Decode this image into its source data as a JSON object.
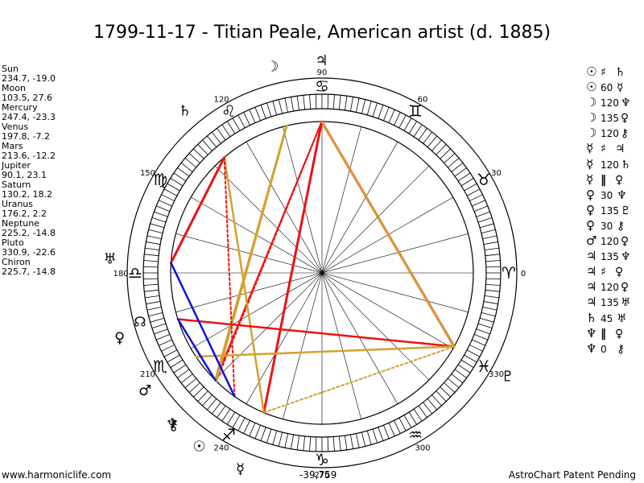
{
  "title": "1799-11-17 - Titian Peale, American artist (d. 1885)",
  "planets": [
    {
      "name": "Sun",
      "coords": "234.7, -19.0",
      "lon": 234.7,
      "glyph": "☉"
    },
    {
      "name": "Moon",
      "coords": "103.5, 27.6",
      "lon": 103.5,
      "glyph": "☽"
    },
    {
      "name": "Mercury",
      "coords": "247.4, -23.3",
      "lon": 247.4,
      "glyph": "☿"
    },
    {
      "name": "Venus",
      "coords": "197.8, -7.2",
      "lon": 197.8,
      "glyph": "♀"
    },
    {
      "name": "Mars",
      "coords": "213.6, -12.2",
      "lon": 213.6,
      "glyph": "♂"
    },
    {
      "name": "Jupiter",
      "coords": "90.1, 23.1",
      "lon": 90.1,
      "glyph": "♃"
    },
    {
      "name": "Saturn",
      "coords": "130.2, 18.2",
      "lon": 130.2,
      "glyph": "♄"
    },
    {
      "name": "Uranus",
      "coords": "176.2, 2.2",
      "lon": 176.2,
      "glyph": "♅"
    },
    {
      "name": "Neptune",
      "coords": "225.2, -14.8",
      "lon": 225.2,
      "glyph": "♆"
    },
    {
      "name": "Pluto",
      "coords": "330.9, -22.6",
      "lon": 330.9,
      "glyph": "♇"
    },
    {
      "name": "Chiron",
      "coords": "225.7, -14.8",
      "lon": 225.7,
      "glyph": "⚷"
    }
  ],
  "aspects": [
    {
      "p1": "☉",
      "sym": "♯",
      "p2": "♄"
    },
    {
      "p1": "☉",
      "sym": "60",
      "p2": "☿"
    },
    {
      "p1": "☽",
      "sym": "120",
      "p2": "♆"
    },
    {
      "p1": "☽",
      "sym": "135",
      "p2": "♀"
    },
    {
      "p1": "☽",
      "sym": "120",
      "p2": "⚷"
    },
    {
      "p1": "☿",
      "sym": "♯",
      "p2": "♃"
    },
    {
      "p1": "☿",
      "sym": "120",
      "p2": "♄"
    },
    {
      "p1": "☿",
      "sym": "‖",
      "p2": "♀"
    },
    {
      "p1": "♀",
      "sym": "30",
      "p2": "♆"
    },
    {
      "p1": "♀",
      "sym": "135",
      "p2": "♇"
    },
    {
      "p1": "♀",
      "sym": "30",
      "p2": "⚷"
    },
    {
      "p1": "♂",
      "sym": "120",
      "p2": "♀"
    },
    {
      "p1": "♃",
      "sym": "135",
      "p2": "♆"
    },
    {
      "p1": "♃",
      "sym": "♯",
      "p2": "♀"
    },
    {
      "p1": "♃",
      "sym": "120",
      "p2": "♀"
    },
    {
      "p1": "♃",
      "sym": "135",
      "p2": "♅"
    },
    {
      "p1": "♄",
      "sym": "45",
      "p2": "♅"
    },
    {
      "p1": "♆",
      "sym": "‖",
      "p2": "♀"
    },
    {
      "p1": "♆",
      "sym": "0",
      "p2": "⚷"
    }
  ],
  "degree_labels": [
    "0",
    "30",
    "60",
    "90",
    "120",
    "150",
    "180",
    "210",
    "240",
    "270",
    "300",
    "330"
  ],
  "sign_glyphs": [
    "♈",
    "♉",
    "♊",
    "♋",
    "♌",
    "♍",
    "♎",
    "♏",
    "♐",
    "♑",
    "♒",
    "♓"
  ],
  "node_glyph": "☊",
  "node_lon": 195,
  "center_readout": "-39,759",
  "footer_left": "www.harmoniclife.com",
  "footer_right": "AstroChart Patent Pending",
  "colors": {
    "red": "#ee1111",
    "gold": "#d4a030",
    "blue": "#1111dd",
    "ring": "#000000"
  }
}
